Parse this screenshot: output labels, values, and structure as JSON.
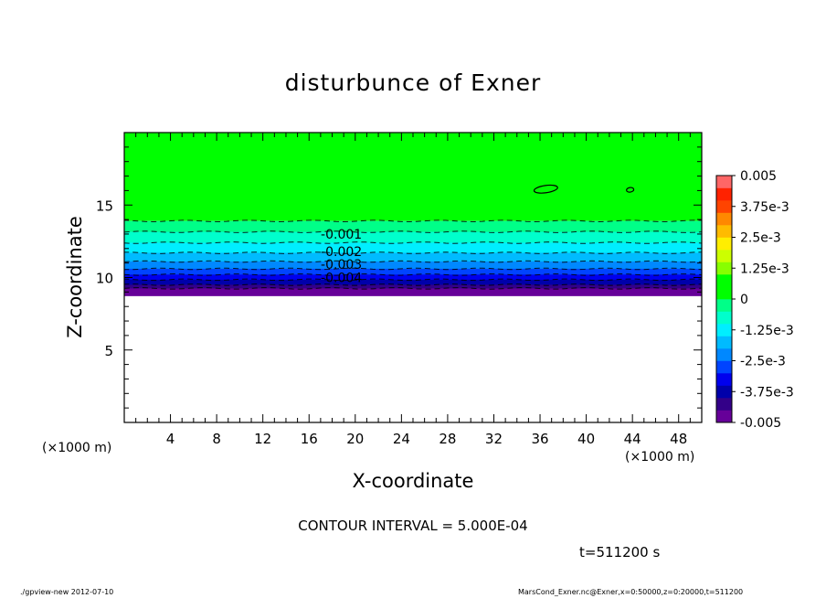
{
  "chart_data": {
    "type": "heatmap",
    "title": "disturbunce of Exner",
    "xlabel": "X-coordinate",
    "ylabel": "Z-coordinate",
    "x_unit": "(×1000 m)",
    "x_unit_colorbar": "(×1000 m)",
    "xlim": [
      0,
      50
    ],
    "ylim": [
      0,
      20
    ],
    "x_ticks": [
      4,
      8,
      12,
      16,
      20,
      24,
      28,
      32,
      36,
      40,
      44,
      48
    ],
    "y_ticks": [
      5,
      10,
      15
    ],
    "contour_interval": "CONTOUR INTERVAL = 5.000E-04",
    "time_label": "t=511200 s",
    "contour_labels": [
      {
        "text": "-0.001",
        "x": 18.8,
        "z": 13.0
      },
      {
        "text": "-0.002",
        "x": 18.8,
        "z": 11.8
      },
      {
        "text": "-0.003",
        "x": 18.8,
        "z": 10.9
      },
      {
        "text": "-0.004",
        "x": 18.8,
        "z": 10.0
      }
    ],
    "levels": [
      {
        "z": 13.9,
        "color": "#00ff00",
        "label": "0"
      },
      {
        "z": 13.15,
        "color": "#00ff88",
        "label": "-5.0e-4"
      },
      {
        "z": 12.4,
        "color": "#00ffcc",
        "label": "-1.0e-3"
      },
      {
        "z": 11.7,
        "color": "#00eeff",
        "label": "-1.5e-3"
      },
      {
        "z": 11.1,
        "color": "#00bbff",
        "label": "-2.0e-3"
      },
      {
        "z": 10.6,
        "color": "#0088ff",
        "label": "-2.5e-3"
      },
      {
        "z": 10.2,
        "color": "#0044ff",
        "label": "-3.0e-3"
      },
      {
        "z": 9.85,
        "color": "#0000ee",
        "label": "-3.5e-3"
      },
      {
        "z": 9.5,
        "color": "#0000aa",
        "label": "-4.0e-3"
      },
      {
        "z": 9.25,
        "color": "#330088",
        "label": "-4.5e-3"
      },
      {
        "z": 9.0,
        "color": "#660099",
        "label": "-5.0e-3"
      }
    ],
    "colorbar": {
      "colors": [
        "#660099",
        "#330088",
        "#0000aa",
        "#0000ee",
        "#0044ff",
        "#0088ff",
        "#00bbff",
        "#00eeff",
        "#00ffcc",
        "#00ff88",
        "#00ff00",
        "#00ff00",
        "#88ff00",
        "#ccff00",
        "#ffee00",
        "#ffbb00",
        "#ff8800",
        "#ff4400",
        "#ff2200",
        "#ff6666"
      ],
      "tick_labels": [
        "-0.005",
        "-3.75e-3",
        "-2.5e-3",
        "-1.25e-3",
        "0",
        "1.25e-3",
        "2.5e-3",
        "3.75e-3",
        "0.005"
      ]
    },
    "closed_contours": [
      {
        "x": 36.5,
        "z": 16.1
      },
      {
        "x": 43.8,
        "z": 16.05
      }
    ],
    "grid": false,
    "legend": "colorbar-right"
  },
  "footer": {
    "left": "./gpview-new   2012-07-10",
    "right": "MarsCond_Exner.nc@Exner,x=0:50000,z=0:20000,t=511200"
  }
}
